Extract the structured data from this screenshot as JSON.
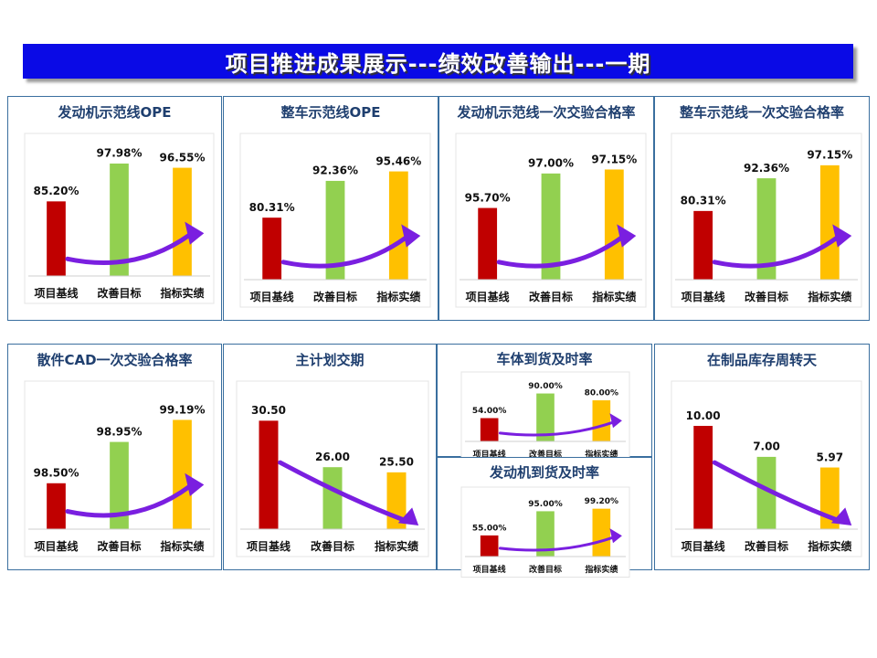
{
  "header": {
    "title": "项目推进成果展示---绩效改善输出---一期"
  },
  "chart_data": [
    {
      "type": "bar",
      "title": "发动机示范线OPE",
      "categories": [
        "项目基线",
        "改善目标",
        "指标实绩"
      ],
      "values": [
        85.2,
        97.98,
        96.55
      ],
      "value_labels": [
        "85.20%",
        "97.98%",
        "96.55%"
      ],
      "colors": [
        "#c00000",
        "#92d050",
        "#ffc000"
      ],
      "ylim": [
        60,
        100
      ],
      "trend_arrow": "up"
    },
    {
      "type": "bar",
      "title": "整车示范线OPE",
      "categories": [
        "项目基线",
        "改善目标",
        "指标实绩"
      ],
      "values": [
        80.31,
        92.36,
        95.46
      ],
      "value_labels": [
        "80.31%",
        "92.36%",
        "95.46%"
      ],
      "colors": [
        "#c00000",
        "#92d050",
        "#ffc000"
      ],
      "ylim": [
        60,
        100
      ],
      "trend_arrow": "up"
    },
    {
      "type": "bar",
      "title": "发动机示范线一次交验合格率",
      "categories": [
        "项目基线",
        "改善目标",
        "指标实绩"
      ],
      "values": [
        95.7,
        97.0,
        97.15
      ],
      "value_labels": [
        "95.70%",
        "97.00%",
        "97.15%"
      ],
      "colors": [
        "#c00000",
        "#92d050",
        "#ffc000"
      ],
      "ylim": [
        93,
        97.6
      ],
      "trend_arrow": "up"
    },
    {
      "type": "bar",
      "title": "整车示范线一次交验合格率",
      "categories": [
        "项目基线",
        "改善目标",
        "指标实绩"
      ],
      "values": [
        80.31,
        92.36,
        97.15
      ],
      "value_labels": [
        "80.31%",
        "92.36%",
        "97.15%"
      ],
      "colors": [
        "#c00000",
        "#92d050",
        "#ffc000"
      ],
      "ylim": [
        55,
        100
      ],
      "trend_arrow": "up"
    },
    {
      "type": "bar",
      "title": "散件CAD一次交验合格率",
      "categories": [
        "项目基线",
        "改善目标",
        "指标实绩"
      ],
      "values": [
        98.5,
        98.95,
        99.19
      ],
      "value_labels": [
        "98.50%",
        "98.95%",
        "99.19%"
      ],
      "colors": [
        "#c00000",
        "#92d050",
        "#ffc000"
      ],
      "ylim": [
        98.0,
        99.35
      ],
      "trend_arrow": "up"
    },
    {
      "type": "bar",
      "title": "主计划交期",
      "categories": [
        "项目基线",
        "改善目标",
        "指标实绩"
      ],
      "values": [
        30.5,
        26.0,
        25.5
      ],
      "value_labels": [
        "30.50",
        "26.00",
        "25.50"
      ],
      "colors": [
        "#c00000",
        "#92d050",
        "#ffc000"
      ],
      "ylim": [
        20,
        32
      ],
      "trend_arrow": "down"
    },
    {
      "type": "bar",
      "title": "车体到货及时率",
      "categories": [
        "项目基线",
        "改善目标",
        "指标实绩"
      ],
      "values": [
        54.0,
        90.0,
        80.0
      ],
      "value_labels": [
        "54.00%",
        "90.00%",
        "80.00%"
      ],
      "colors": [
        "#c00000",
        "#92d050",
        "#ffc000"
      ],
      "ylim": [
        20,
        95
      ],
      "trend_arrow": "up"
    },
    {
      "type": "bar",
      "title": "发动机到货及时率",
      "categories": [
        "项目基线",
        "改善目标",
        "指标实绩"
      ],
      "values": [
        55.0,
        95.0,
        99.2
      ],
      "value_labels": [
        "55.00%",
        "95.00%",
        "99.20%"
      ],
      "colors": [
        "#c00000",
        "#92d050",
        "#ffc000"
      ],
      "ylim": [
        20,
        105
      ],
      "trend_arrow": "up"
    },
    {
      "type": "bar",
      "title": "在制品库存周转天",
      "categories": [
        "项目基线",
        "改善目标",
        "指标实绩"
      ],
      "values": [
        10.0,
        7.0,
        5.97
      ],
      "value_labels": [
        "10.00",
        "7.00",
        "5.97"
      ],
      "colors": [
        "#c00000",
        "#92d050",
        "#ffc000"
      ],
      "ylim": [
        0,
        12
      ],
      "trend_arrow": "down"
    }
  ]
}
